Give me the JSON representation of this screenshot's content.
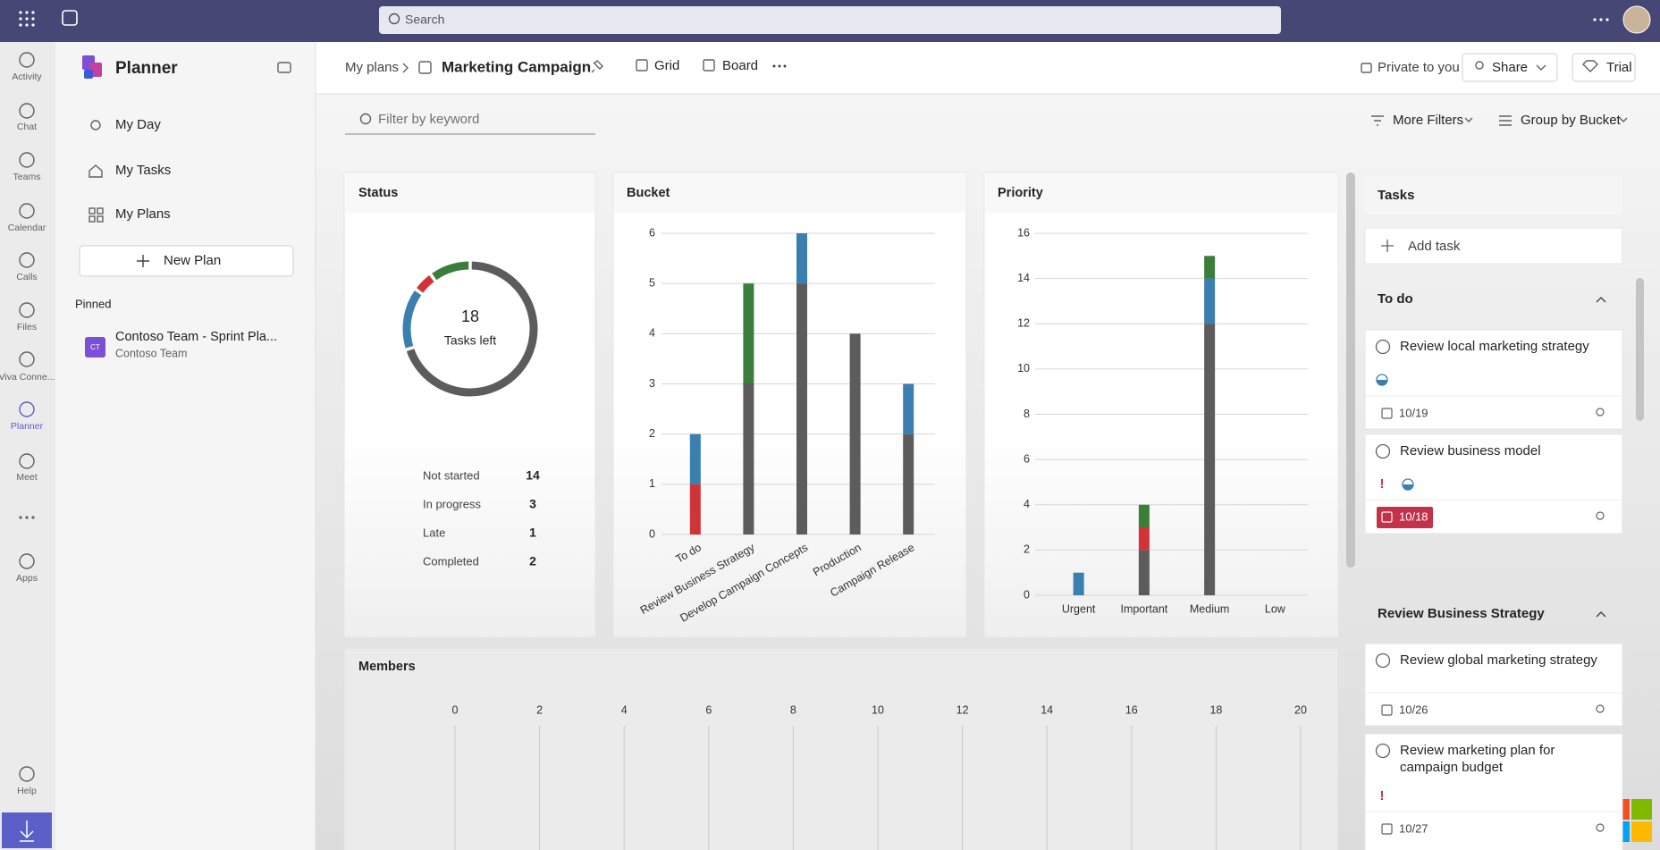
{
  "top_bar": {
    "search_placeholder": "Search"
  },
  "app_rail": {
    "items": [
      "Activity",
      "Chat",
      "Teams",
      "Calendar",
      "Calls",
      "Files",
      "Viva Conne...",
      "Planner",
      "Meet",
      "Apps",
      "Help"
    ]
  },
  "sidebar": {
    "title": "Planner",
    "nav": [
      "My Day",
      "My Tasks",
      "My Plans"
    ],
    "new_plan": "New Plan",
    "pinned_heading": "Pinned",
    "pinned": [
      {
        "initials": "CT",
        "title": "Contoso Team - Sprint Pla...",
        "subtitle": "Contoso Team"
      }
    ]
  },
  "header": {
    "breadcrumb": "My plans",
    "plan_name": "Marketing Campaign",
    "views": [
      "Grid",
      "Board"
    ],
    "privacy": "Private to you",
    "share": "Share",
    "trial": "Trial"
  },
  "toolbar": {
    "filter_placeholder": "Filter by keyword",
    "more_filters": "More Filters",
    "group_by": "Group by Bucket"
  },
  "chart_data": [
    {
      "type": "pie",
      "title": "Status",
      "categories": [
        "Not started",
        "In progress",
        "Late",
        "Completed"
      ],
      "values": [
        14,
        3,
        1,
        2
      ],
      "colors": [
        "#5c5c5c",
        "#3a7fb0",
        "#d13438",
        "#3b7d3b"
      ],
      "center_value": 18,
      "center_label": "Tasks left"
    },
    {
      "type": "bar",
      "title": "Bucket",
      "categories": [
        "To do",
        "Review Business Strategy",
        "Develop Campaign Concepts",
        "Production",
        "Campaign Release"
      ],
      "series": [
        {
          "color": "#5c5c5c",
          "values": [
            0,
            3,
            5,
            4,
            2
          ]
        },
        {
          "color": "#d13438",
          "values": [
            1,
            0,
            0,
            0,
            0
          ]
        },
        {
          "color": "#3a7fb0",
          "values": [
            1,
            0,
            1,
            0,
            1
          ]
        },
        {
          "color": "#3b7d3b",
          "values": [
            0,
            2,
            0,
            0,
            0
          ]
        }
      ],
      "ylim": [
        0,
        6
      ],
      "yticks": [
        0,
        1,
        2,
        3,
        4,
        5,
        6
      ],
      "grid": true
    },
    {
      "type": "bar",
      "title": "Priority",
      "categories": [
        "Urgent",
        "Important",
        "Medium",
        "Low"
      ],
      "series": [
        {
          "color": "#5c5c5c",
          "values": [
            0,
            2,
            12,
            0
          ]
        },
        {
          "color": "#d13438",
          "values": [
            0,
            1,
            0,
            0
          ]
        },
        {
          "color": "#3a7fb0",
          "values": [
            1,
            0,
            2,
            0
          ]
        },
        {
          "color": "#3b7d3b",
          "values": [
            0,
            1,
            1,
            0
          ]
        }
      ],
      "ylim": [
        0,
        16
      ],
      "yticks": [
        0,
        2,
        4,
        6,
        8,
        10,
        12,
        14,
        16
      ],
      "grid": true
    },
    {
      "type": "bar",
      "orientation": "horizontal",
      "title": "Members",
      "xlim": [
        0,
        20
      ],
      "xticks": [
        0,
        2,
        4,
        6,
        8,
        10,
        12,
        14,
        16,
        18,
        20
      ],
      "grid": true
    }
  ],
  "task_panel": {
    "title": "Tasks",
    "add_task": "Add task",
    "buckets": [
      {
        "name": "To do",
        "tasks": [
          {
            "title": "Review local marketing strategy",
            "due": "10/19",
            "in_progress": true,
            "important": false,
            "late": false
          },
          {
            "title": "Review business model",
            "due": "10/18",
            "in_progress": true,
            "important": true,
            "late": true
          }
        ]
      },
      {
        "name": "Review Business Strategy",
        "tasks": [
          {
            "title": "Review global marketing strategy",
            "due": "10/26",
            "in_progress": false,
            "important": false,
            "late": false
          },
          {
            "title": "Review marketing plan for campaign budget",
            "due": "10/27",
            "in_progress": false,
            "important": true,
            "late": false
          }
        ]
      }
    ]
  }
}
